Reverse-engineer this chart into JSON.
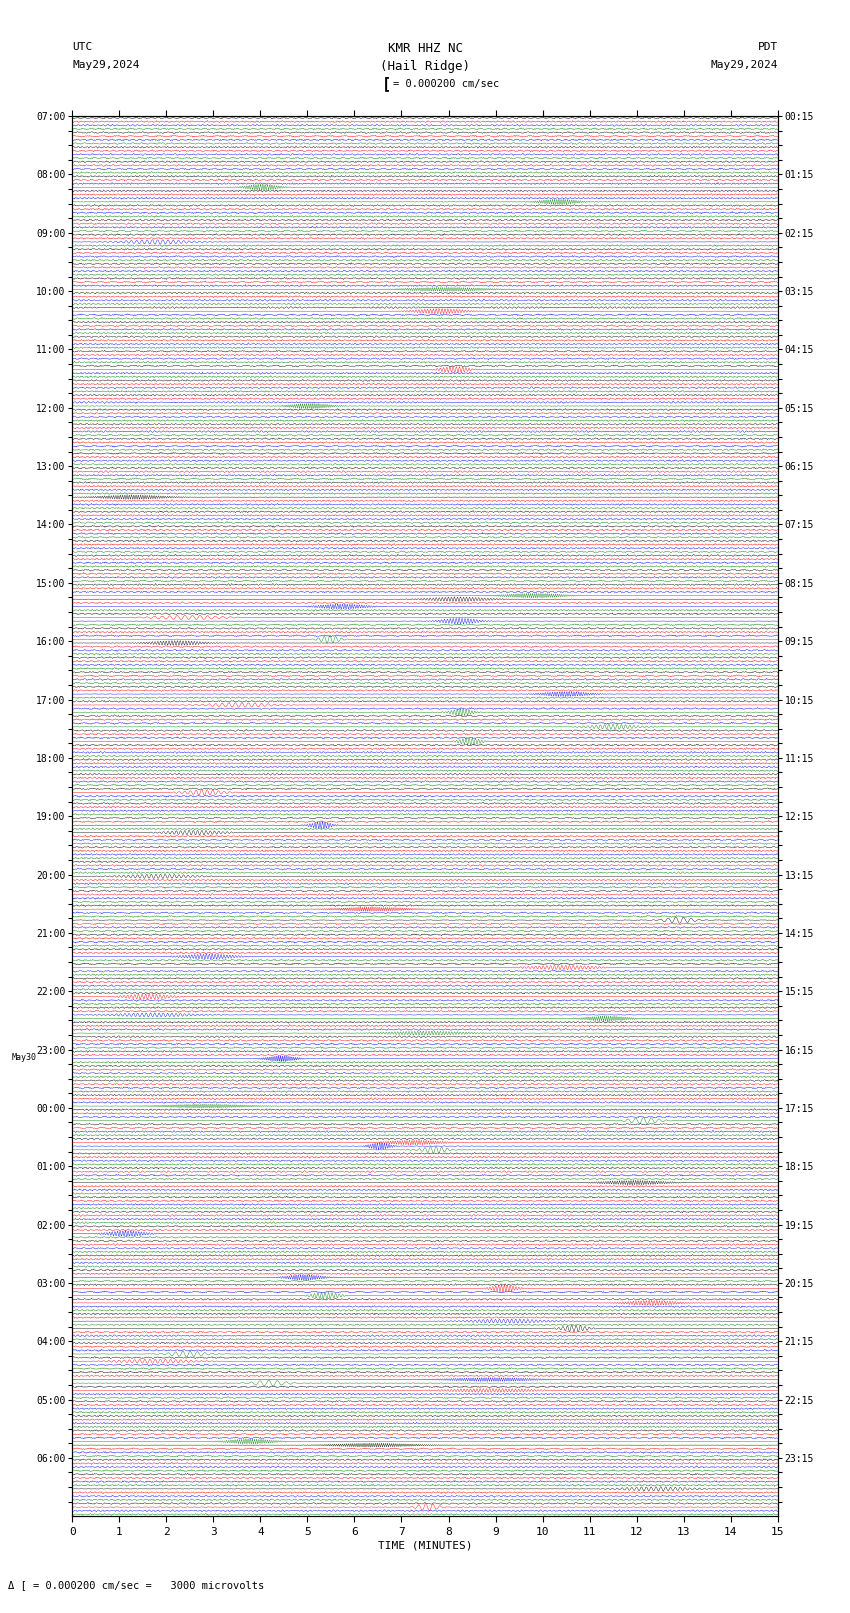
{
  "title_center1": "KMR HHZ NC",
  "title_center2": "(Hail Ridge)",
  "title_left1": "UTC",
  "title_left2": "May29,2024",
  "title_right1": "PDT",
  "title_right2": "May29,2024",
  "scale_text": "= 0.000200 cm/sec",
  "scale_text2": "= 0.000200 cm/sec =   3000 microvolts",
  "xlabel": "TIME (MINUTES)",
  "xmin": 0,
  "xmax": 15,
  "xticks": [
    0,
    1,
    2,
    3,
    4,
    5,
    6,
    7,
    8,
    9,
    10,
    11,
    12,
    13,
    14,
    15
  ],
  "left_times": [
    "07:00",
    "",
    "",
    "",
    "08:00",
    "",
    "",
    "",
    "09:00",
    "",
    "",
    "",
    "10:00",
    "",
    "",
    "",
    "11:00",
    "",
    "",
    "",
    "12:00",
    "",
    "",
    "",
    "13:00",
    "",
    "",
    "",
    "14:00",
    "",
    "",
    "",
    "15:00",
    "",
    "",
    "",
    "16:00",
    "",
    "",
    "",
    "17:00",
    "",
    "",
    "",
    "18:00",
    "",
    "",
    "",
    "19:00",
    "",
    "",
    "",
    "20:00",
    "",
    "",
    "",
    "21:00",
    "",
    "",
    "",
    "22:00",
    "",
    "",
    "",
    "23:00",
    "",
    "",
    "",
    "00:00",
    "",
    "",
    "",
    "01:00",
    "",
    "",
    "",
    "02:00",
    "",
    "",
    "",
    "03:00",
    "",
    "",
    "",
    "04:00",
    "",
    "",
    "",
    "05:00",
    "",
    "",
    "",
    "06:00",
    "",
    "",
    ""
  ],
  "left_times_extra": [
    "",
    "",
    "",
    "",
    "",
    "",
    "",
    "",
    "",
    "",
    "",
    "",
    "",
    "",
    "",
    "",
    "",
    "",
    "",
    "",
    "",
    "",
    "",
    "",
    "",
    "",
    "",
    "",
    "",
    "",
    "",
    "",
    "",
    "",
    "",
    "",
    "",
    "",
    "",
    "",
    "",
    "",
    "",
    "",
    "",
    "",
    "",
    "",
    "",
    "",
    "",
    "",
    "",
    "",
    "",
    "",
    "",
    "",
    "",
    "",
    "",
    "",
    "",
    "",
    "May30",
    "",
    "",
    "",
    "",
    "",
    "",
    "",
    "",
    "",
    "",
    "",
    "",
    "",
    "",
    "",
    "",
    "",
    "",
    "",
    "",
    "",
    "",
    "",
    "",
    "",
    "",
    "",
    "",
    "",
    "",
    "",
    ""
  ],
  "right_times": [
    "00:15",
    "",
    "",
    "",
    "01:15",
    "",
    "",
    "",
    "02:15",
    "",
    "",
    "",
    "03:15",
    "",
    "",
    "",
    "04:15",
    "",
    "",
    "",
    "05:15",
    "",
    "",
    "",
    "06:15",
    "",
    "",
    "",
    "07:15",
    "",
    "",
    "",
    "08:15",
    "",
    "",
    "",
    "09:15",
    "",
    "",
    "",
    "10:15",
    "",
    "",
    "",
    "11:15",
    "",
    "",
    "",
    "12:15",
    "",
    "",
    "",
    "13:15",
    "",
    "",
    "",
    "14:15",
    "",
    "",
    "",
    "15:15",
    "",
    "",
    "",
    "16:15",
    "",
    "",
    "",
    "17:15",
    "",
    "",
    "",
    "18:15",
    "",
    "",
    "",
    "19:15",
    "",
    "",
    "",
    "20:15",
    "",
    "",
    "",
    "21:15",
    "",
    "",
    "",
    "22:15",
    "",
    "",
    "",
    "23:15",
    "",
    "",
    ""
  ],
  "n_rows": 96,
  "traces_per_row": 4,
  "colors": [
    "black",
    "red",
    "blue",
    "green"
  ],
  "fig_width": 8.5,
  "fig_height": 16.13,
  "bg_color": "white",
  "dpi": 100
}
